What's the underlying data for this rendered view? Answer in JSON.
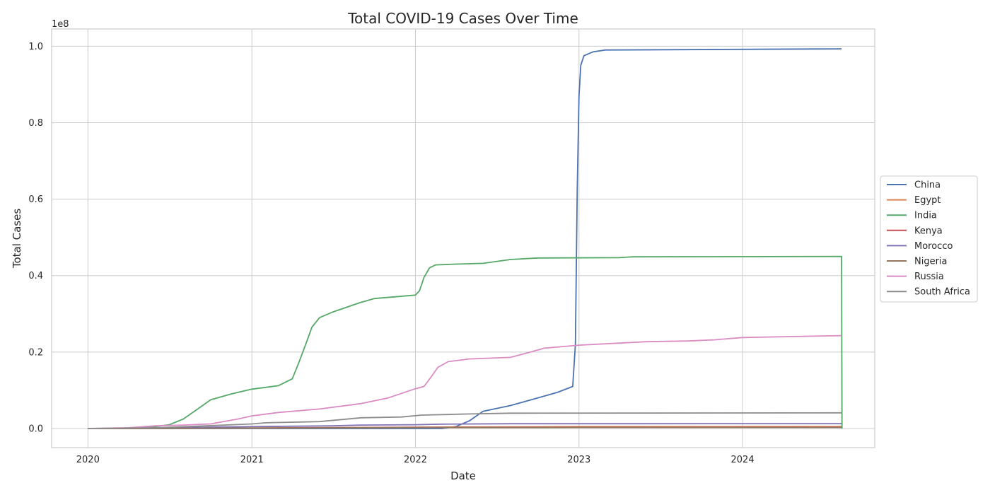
{
  "chart_data": {
    "type": "line",
    "title": "Total COVID-19 Cases Over Time",
    "xlabel": "Date",
    "ylabel": "Total Cases",
    "y_offset_label": "1e8",
    "xlim": [
      "2019-10-12",
      "2024-10-22"
    ],
    "ylim": [
      -0.05,
      1.045
    ],
    "y_scale_note": "values in units of 1e8",
    "x_ticks": [
      {
        "date": "2020-01-01",
        "label": "2020"
      },
      {
        "date": "2021-01-01",
        "label": "2021"
      },
      {
        "date": "2022-01-01",
        "label": "2022"
      },
      {
        "date": "2023-01-01",
        "label": "2023"
      },
      {
        "date": "2024-01-01",
        "label": "2024"
      }
    ],
    "y_ticks": [
      {
        "value": 0.0,
        "label": "0.0"
      },
      {
        "value": 0.2,
        "label": "0.2"
      },
      {
        "value": 0.4,
        "label": "0.4"
      },
      {
        "value": 0.6,
        "label": "0.6"
      },
      {
        "value": 0.8,
        "label": "0.8"
      },
      {
        "value": 1.0,
        "label": "1.0"
      }
    ],
    "grid": true,
    "legend_position": "right, outside plot",
    "series": [
      {
        "name": "China",
        "color": "#4c72b0",
        "points": [
          [
            "2020-01-01",
            0.0
          ],
          [
            "2022-03-01",
            0.0
          ],
          [
            "2022-04-01",
            0.005
          ],
          [
            "2022-05-01",
            0.02
          ],
          [
            "2022-06-01",
            0.045
          ],
          [
            "2022-08-01",
            0.06
          ],
          [
            "2022-10-01",
            0.08
          ],
          [
            "2022-11-15",
            0.095
          ],
          [
            "2022-12-18",
            0.11
          ],
          [
            "2022-12-24",
            0.22
          ],
          [
            "2022-12-28",
            0.625
          ],
          [
            "2023-01-01",
            0.87
          ],
          [
            "2023-01-05",
            0.95
          ],
          [
            "2023-01-12",
            0.975
          ],
          [
            "2023-02-01",
            0.985
          ],
          [
            "2023-03-01",
            0.99
          ],
          [
            "2024-08-09",
            0.993
          ]
        ]
      },
      {
        "name": "Egypt",
        "color": "#dd8452",
        "points": [
          [
            "2020-01-01",
            0.0
          ],
          [
            "2021-01-01",
            0.0015
          ],
          [
            "2022-01-01",
            0.0035
          ],
          [
            "2023-01-01",
            0.005
          ],
          [
            "2024-08-09",
            0.0052
          ]
        ]
      },
      {
        "name": "India",
        "color": "#55a868",
        "points": [
          [
            "2020-01-01",
            0.0
          ],
          [
            "2020-05-01",
            0.0005
          ],
          [
            "2020-07-01",
            0.01
          ],
          [
            "2020-08-01",
            0.025
          ],
          [
            "2020-09-01",
            0.05
          ],
          [
            "2020-10-01",
            0.075
          ],
          [
            "2020-11-15",
            0.09
          ],
          [
            "2021-01-01",
            0.103
          ],
          [
            "2021-03-01",
            0.112
          ],
          [
            "2021-04-01",
            0.13
          ],
          [
            "2021-04-15",
            0.17
          ],
          [
            "2021-05-01",
            0.22
          ],
          [
            "2021-05-15",
            0.265
          ],
          [
            "2021-06-01",
            0.29
          ],
          [
            "2021-07-01",
            0.305
          ],
          [
            "2021-09-01",
            0.33
          ],
          [
            "2021-10-01",
            0.34
          ],
          [
            "2022-01-01",
            0.349
          ],
          [
            "2022-01-10",
            0.36
          ],
          [
            "2022-01-20",
            0.395
          ],
          [
            "2022-02-01",
            0.42
          ],
          [
            "2022-02-15",
            0.428
          ],
          [
            "2022-04-01",
            0.43
          ],
          [
            "2022-06-01",
            0.432
          ],
          [
            "2022-08-01",
            0.442
          ],
          [
            "2022-10-01",
            0.446
          ],
          [
            "2023-04-01",
            0.447
          ],
          [
            "2023-05-01",
            0.449
          ],
          [
            "2024-08-09",
            0.45
          ],
          [
            "2024-08-10",
            0.0
          ]
        ]
      },
      {
        "name": "Kenya",
        "color": "#c44e52",
        "points": [
          [
            "2020-01-01",
            0.0
          ],
          [
            "2021-01-01",
            0.001
          ],
          [
            "2022-01-01",
            0.003
          ],
          [
            "2023-01-01",
            0.0034
          ],
          [
            "2024-08-09",
            0.0035
          ]
        ]
      },
      {
        "name": "Morocco",
        "color": "#8172b3",
        "points": [
          [
            "2020-01-01",
            0.0
          ],
          [
            "2020-07-01",
            0.002
          ],
          [
            "2021-01-01",
            0.005
          ],
          [
            "2021-07-01",
            0.007
          ],
          [
            "2021-09-01",
            0.009
          ],
          [
            "2022-01-01",
            0.01
          ],
          [
            "2022-03-01",
            0.0115
          ],
          [
            "2022-08-01",
            0.0125
          ],
          [
            "2024-08-09",
            0.0127
          ]
        ]
      },
      {
        "name": "Nigeria",
        "color": "#937860",
        "points": [
          [
            "2020-01-01",
            0.0
          ],
          [
            "2021-01-01",
            0.001
          ],
          [
            "2022-01-01",
            0.0024
          ],
          [
            "2023-01-01",
            0.0027
          ],
          [
            "2024-08-09",
            0.0027
          ]
        ]
      },
      {
        "name": "Russia",
        "color": "#da8bc3",
        "points": [
          [
            "2020-01-01",
            0.0
          ],
          [
            "2020-04-01",
            0.002
          ],
          [
            "2020-06-01",
            0.007
          ],
          [
            "2020-08-01",
            0.009
          ],
          [
            "2020-10-01",
            0.012
          ],
          [
            "2020-12-01",
            0.025
          ],
          [
            "2021-01-01",
            0.033
          ],
          [
            "2021-03-01",
            0.042
          ],
          [
            "2021-06-01",
            0.051
          ],
          [
            "2021-09-01",
            0.065
          ],
          [
            "2021-11-01",
            0.08
          ],
          [
            "2022-01-01",
            0.104
          ],
          [
            "2022-01-20",
            0.11
          ],
          [
            "2022-02-05",
            0.135
          ],
          [
            "2022-02-20",
            0.16
          ],
          [
            "2022-03-15",
            0.175
          ],
          [
            "2022-05-01",
            0.182
          ],
          [
            "2022-08-01",
            0.186
          ],
          [
            "2022-09-15",
            0.2
          ],
          [
            "2022-10-15",
            0.21
          ],
          [
            "2023-01-01",
            0.218
          ],
          [
            "2023-06-01",
            0.227
          ],
          [
            "2023-09-01",
            0.229
          ],
          [
            "2023-11-01",
            0.232
          ],
          [
            "2024-01-01",
            0.238
          ],
          [
            "2024-08-09",
            0.243
          ]
        ]
      },
      {
        "name": "South Africa",
        "color": "#8c8c8c",
        "points": [
          [
            "2020-01-01",
            0.0
          ],
          [
            "2020-06-01",
            0.002
          ],
          [
            "2020-09-01",
            0.006
          ],
          [
            "2021-01-01",
            0.012
          ],
          [
            "2021-02-01",
            0.015
          ],
          [
            "2021-06-01",
            0.018
          ],
          [
            "2021-09-01",
            0.028
          ],
          [
            "2021-12-01",
            0.03
          ],
          [
            "2022-01-15",
            0.035
          ],
          [
            "2022-05-01",
            0.038
          ],
          [
            "2022-08-01",
            0.04
          ],
          [
            "2024-08-09",
            0.041
          ]
        ]
      }
    ]
  }
}
